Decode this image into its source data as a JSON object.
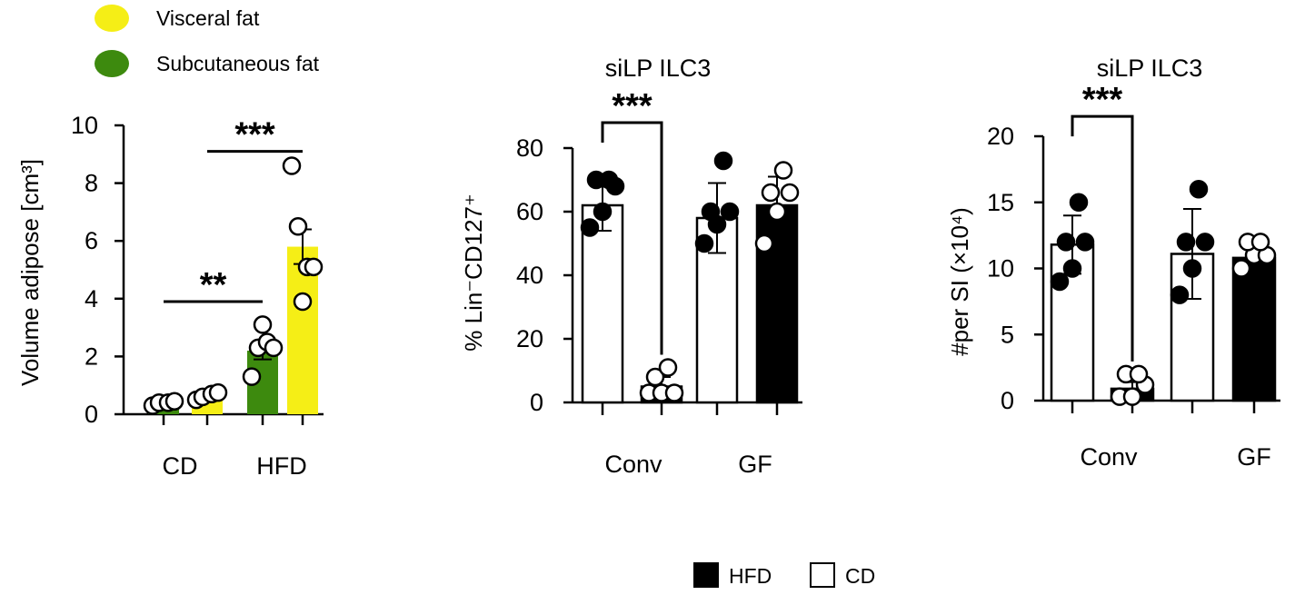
{
  "chart_data": [
    {
      "id": "adipose",
      "type": "bar",
      "title": "",
      "ylabel": "Volume adipose [cm³]",
      "ylim": [
        0,
        10
      ],
      "yticks": [
        0,
        2,
        4,
        6,
        8,
        10
      ],
      "groups": [
        "CD",
        "HFD"
      ],
      "legend": [
        {
          "name": "Visceral fat",
          "color": "#f5ee16"
        },
        {
          "name": "Subcutaneous fat",
          "color": "#3d8a0e"
        }
      ],
      "bars": [
        {
          "group": "CD",
          "series": "Subcutaneous fat",
          "color": "#3d8a0e",
          "value": 0.35,
          "sem": 0.05,
          "points": [
            0.3,
            0.4,
            0.4,
            0.45
          ]
        },
        {
          "group": "CD",
          "series": "Visceral fat",
          "color": "#f5ee16",
          "value": 0.65,
          "sem": 0.08,
          "points": [
            0.5,
            0.6,
            0.7,
            0.75
          ]
        },
        {
          "group": "HFD",
          "series": "Subcutaneous fat",
          "color": "#3d8a0e",
          "value": 2.2,
          "sem": 0.3,
          "points": [
            1.3,
            2.3,
            2.5,
            2.3,
            3.1
          ]
        },
        {
          "group": "HFD",
          "series": "Visceral fat",
          "color": "#f5ee16",
          "value": 5.8,
          "sem": 0.6,
          "points": [
            8.6,
            6.5,
            5.1,
            5.1,
            3.9
          ]
        }
      ],
      "significance": [
        {
          "from": 0,
          "to": 2,
          "label": "**",
          "y": 3.9
        },
        {
          "from": 1,
          "to": 3,
          "label": "***",
          "y": 9.1
        }
      ]
    },
    {
      "id": "pct",
      "type": "bar",
      "title": "siLP ILC3",
      "ylabel": "% Lin⁻CD127⁺",
      "ylim": [
        0,
        80
      ],
      "yticks": [
        0,
        20,
        40,
        60,
        80
      ],
      "groups": [
        "Conv",
        "GF"
      ],
      "bars": [
        {
          "group": "Conv",
          "series": "CD",
          "value": 62,
          "sd": 8,
          "points": [
            55,
            60,
            68,
            70,
            70
          ]
        },
        {
          "group": "Conv",
          "series": "HFD",
          "value": 5,
          "sd": 3,
          "points": [
            3,
            3,
            3,
            8,
            11
          ]
        },
        {
          "group": "GF",
          "series": "CD",
          "value": 58,
          "sd": 11,
          "points": [
            50,
            56,
            60,
            60,
            76
          ]
        },
        {
          "group": "GF",
          "series": "HFD",
          "value": 62,
          "sd": 9,
          "points": [
            50,
            60,
            66,
            66,
            73
          ]
        }
      ],
      "significance": [
        {
          "from": 0,
          "to": 1,
          "label": "***",
          "y": 88
        }
      ]
    },
    {
      "id": "count",
      "type": "bar",
      "title": "siLP ILC3",
      "ylabel": "#per SI (×10⁴)",
      "ylim": [
        0,
        20
      ],
      "yticks": [
        0,
        5,
        10,
        15,
        20
      ],
      "groups": [
        "Conv",
        "GF"
      ],
      "bars": [
        {
          "group": "Conv",
          "series": "CD",
          "value": 11.8,
          "sd": 2.2,
          "points": [
            9,
            10,
            12,
            12,
            15
          ]
        },
        {
          "group": "Conv",
          "series": "HFD",
          "value": 0.9,
          "sd": 0.5,
          "points": [
            0.3,
            0.3,
            1.2,
            2,
            2
          ]
        },
        {
          "group": "GF",
          "series": "CD",
          "value": 11.1,
          "sd": 3.4,
          "points": [
            8,
            10,
            12,
            12,
            16
          ]
        },
        {
          "group": "GF",
          "series": "HFD",
          "value": 10.8,
          "sd": 1.5,
          "points": [
            10,
            11,
            11,
            12,
            12
          ]
        }
      ],
      "significance": [
        {
          "from": 0,
          "to": 1,
          "label": "***",
          "y": 21.5
        }
      ]
    }
  ],
  "bottom_legend": [
    {
      "name": "HFD",
      "fill": "#000000"
    },
    {
      "name": "CD",
      "fill": "#ffffff"
    }
  ]
}
